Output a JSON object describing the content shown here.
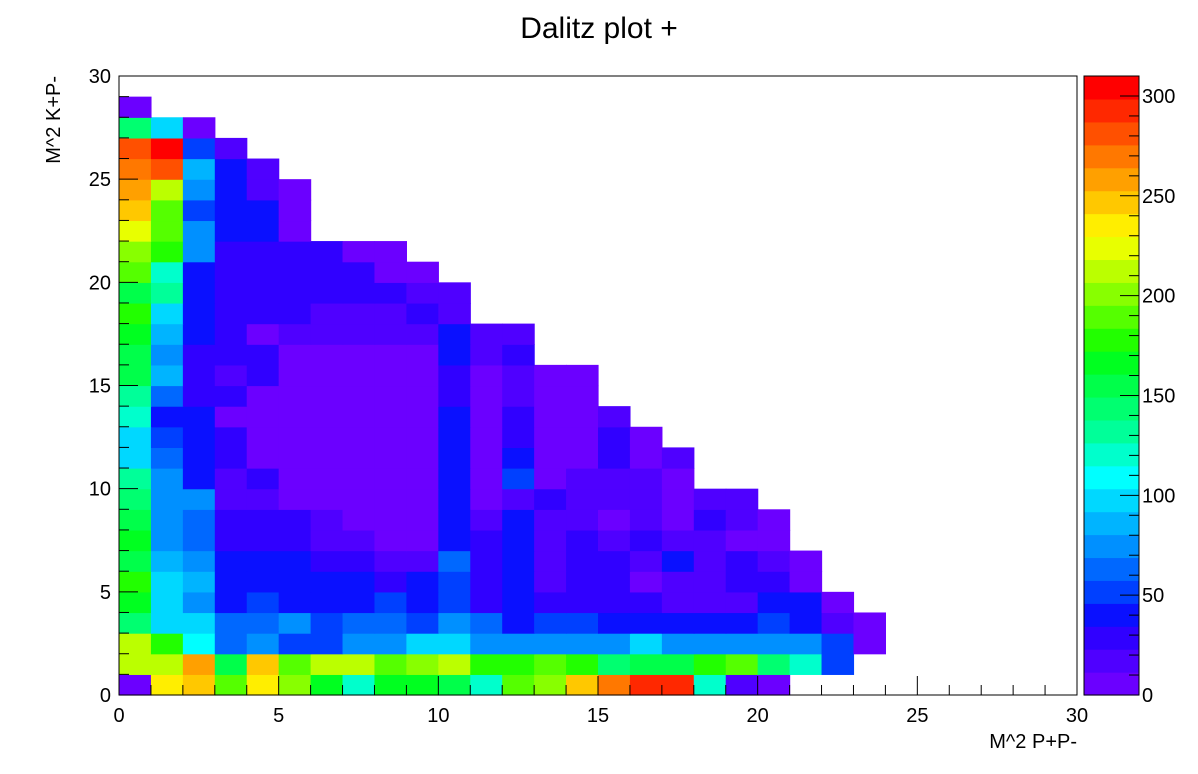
{
  "chart_data": {
    "type": "heatmap",
    "title": "Dalitz plot +",
    "xlabel": "M^2 P+P-",
    "ylabel": "M^2 K+P-",
    "xlim": [
      0,
      30
    ],
    "ylim": [
      0,
      30
    ],
    "bin_width": 1,
    "x_tick_labels": [
      "0",
      "5",
      "10",
      "15",
      "20",
      "25",
      "30"
    ],
    "y_tick_labels": [
      "0",
      "5",
      "10",
      "15",
      "20",
      "25",
      "30"
    ],
    "color_scale": {
      "min": 0,
      "max": 310,
      "tick_labels": [
        "0",
        "50",
        "100",
        "150",
        "200",
        "250",
        "300"
      ],
      "colors": [
        "#6b00ff",
        "#4f00ff",
        "#3000ff",
        "#0a10ff",
        "#0040ff",
        "#0068ff",
        "#0090ff",
        "#00b4ff",
        "#00d8ff",
        "#00ffff",
        "#00ffcc",
        "#00ff99",
        "#00ff70",
        "#00ff4a",
        "#00ff20",
        "#22ff00",
        "#55ff00",
        "#88ff00",
        "#bbff00",
        "#e8ff00",
        "#ffee00",
        "#ffc800",
        "#ffa000",
        "#ff7800",
        "#ff5000",
        "#ff2800",
        "#ff0000"
      ]
    },
    "rows": [
      [
        10,
        230,
        245,
        185,
        235,
        200,
        170,
        125,
        165,
        170,
        150,
        120,
        195,
        205,
        245,
        275,
        290,
        290,
        120,
        20,
        10
      ],
      [
        210,
        210,
        260,
        160,
        245,
        185,
        215,
        215,
        185,
        205,
        210,
        180,
        180,
        195,
        175,
        145,
        160,
        160,
        175,
        185,
        145,
        120,
        55
      ],
      [
        215,
        175,
        105,
        60,
        75,
        55,
        55,
        80,
        80,
        100,
        100,
        80,
        70,
        70,
        80,
        80,
        100,
        80,
        80,
        70,
        80,
        80,
        50,
        10
      ],
      [
        140,
        100,
        100,
        60,
        60,
        75,
        55,
        60,
        60,
        50,
        70,
        60,
        40,
        50,
        50,
        40,
        40,
        40,
        40,
        40,
        50,
        45,
        20,
        10
      ],
      [
        170,
        95,
        75,
        45,
        50,
        40,
        40,
        40,
        50,
        40,
        55,
        30,
        40,
        30,
        30,
        30,
        30,
        20,
        20,
        20,
        35,
        45,
        10
      ],
      [
        180,
        100,
        85,
        45,
        45,
        45,
        45,
        45,
        30,
        40,
        50,
        25,
        40,
        20,
        30,
        30,
        10,
        20,
        20,
        25,
        30,
        10
      ],
      [
        160,
        90,
        70,
        40,
        40,
        40,
        30,
        30,
        20,
        20,
        60,
        25,
        40,
        20,
        25,
        25,
        20,
        40,
        20,
        25,
        20,
        10
      ],
      [
        165,
        80,
        60,
        30,
        30,
        25,
        20,
        15,
        10,
        10,
        40,
        30,
        35,
        15,
        25,
        20,
        25,
        15,
        15,
        10,
        10
      ],
      [
        160,
        80,
        65,
        30,
        25,
        25,
        20,
        10,
        10,
        10,
        40,
        20,
        40,
        15,
        20,
        10,
        15,
        10,
        25,
        15,
        10
      ],
      [
        140,
        70,
        70,
        15,
        15,
        10,
        10,
        10,
        10,
        10,
        40,
        10,
        20,
        25,
        20,
        20,
        15,
        10,
        15,
        15
      ],
      [
        130,
        80,
        40,
        20,
        30,
        10,
        10,
        10,
        10,
        10,
        40,
        10,
        50,
        10,
        20,
        20,
        15,
        10
      ],
      [
        100,
        60,
        35,
        30,
        10,
        10,
        10,
        10,
        10,
        10,
        40,
        10,
        40,
        10,
        10,
        30,
        10,
        15
      ],
      [
        100,
        55,
        40,
        30,
        10,
        10,
        10,
        10,
        10,
        10,
        40,
        10,
        30,
        10,
        10,
        30,
        10
      ],
      [
        120,
        45,
        45,
        10,
        10,
        10,
        10,
        10,
        10,
        10,
        40,
        10,
        30,
        10,
        10,
        15
      ],
      [
        130,
        60,
        30,
        30,
        10,
        10,
        10,
        10,
        10,
        10,
        30,
        10,
        20,
        10,
        10
      ],
      [
        150,
        85,
        30,
        20,
        30,
        10,
        10,
        10,
        10,
        10,
        30,
        10,
        20,
        10,
        10
      ],
      [
        160,
        75,
        30,
        30,
        30,
        10,
        10,
        10,
        10,
        10,
        40,
        20,
        30
      ],
      [
        170,
        85,
        40,
        30,
        10,
        20,
        20,
        20,
        20,
        20,
        40,
        20,
        15
      ],
      [
        175,
        100,
        40,
        30,
        30,
        30,
        15,
        15,
        15,
        30,
        20
      ],
      [
        160,
        130,
        40,
        30,
        30,
        30,
        30,
        25,
        25,
        15,
        15
      ],
      [
        185,
        120,
        40,
        30,
        30,
        30,
        30,
        30,
        10,
        10
      ],
      [
        200,
        180,
        70,
        30,
        30,
        30,
        30,
        10,
        10
      ],
      [
        220,
        195,
        75,
        45,
        45,
        10
      ],
      [
        245,
        190,
        50,
        40,
        40,
        10
      ],
      [
        260,
        215,
        70,
        45,
        20,
        10
      ],
      [
        270,
        280,
        90,
        40,
        20
      ],
      [
        280,
        310,
        50,
        20
      ],
      [
        140,
        95,
        10
      ],
      [
        10
      ]
    ]
  }
}
